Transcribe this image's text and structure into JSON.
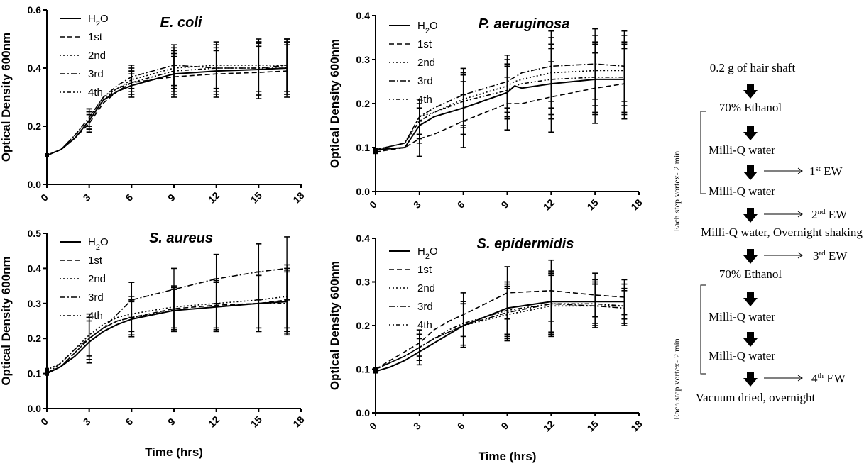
{
  "chart_data": [
    {
      "type": "line",
      "title": "E. coli",
      "xlabel": "",
      "ylabel": "Optical Density 600nm",
      "xlim": [
        0,
        18
      ],
      "ylim": [
        0,
        0.6
      ],
      "xticks": [
        0,
        3,
        6,
        9,
        12,
        15,
        18
      ],
      "yticks": [
        "0.0",
        "0.2",
        "0.4",
        "0.6"
      ],
      "x": [
        0,
        1,
        2,
        3,
        4,
        5,
        6,
        9,
        12,
        15,
        17
      ],
      "series": [
        {
          "name": "H2O",
          "values": [
            0.1,
            0.12,
            0.16,
            0.22,
            0.29,
            0.32,
            0.34,
            0.38,
            0.39,
            0.395,
            0.4
          ]
        },
        {
          "name": "1st",
          "values": [
            0.1,
            0.12,
            0.16,
            0.21,
            0.28,
            0.32,
            0.35,
            0.37,
            0.38,
            0.385,
            0.39
          ]
        },
        {
          "name": "2nd",
          "values": [
            0.1,
            0.12,
            0.17,
            0.23,
            0.3,
            0.33,
            0.36,
            0.4,
            0.41,
            0.41,
            0.41
          ]
        },
        {
          "name": "3rd",
          "values": [
            0.1,
            0.12,
            0.17,
            0.23,
            0.3,
            0.34,
            0.37,
            0.41,
            0.4,
            0.4,
            0.41
          ]
        },
        {
          "name": "4th",
          "values": [
            0.1,
            0.12,
            0.16,
            0.22,
            0.29,
            0.33,
            0.35,
            0.39,
            0.4,
            0.4,
            0.4
          ]
        }
      ],
      "error": [
        0.0,
        0.0,
        0.0,
        0.03,
        0.0,
        0.0,
        0.04,
        0.07,
        0.08,
        0.09,
        0.09
      ]
    },
    {
      "type": "line",
      "title": "P. aeruginosa",
      "xlabel": "",
      "ylabel": "Optical Density 600nm",
      "xlim": [
        0,
        18
      ],
      "ylim": [
        0,
        0.4
      ],
      "xticks": [
        0,
        3,
        6,
        9,
        12,
        15,
        18
      ],
      "yticks": [
        "0.0",
        "0.1",
        "0.2",
        "0.3",
        "0.4"
      ],
      "x": [
        0,
        2,
        3,
        4,
        6,
        9,
        9.5,
        10,
        12,
        15,
        17
      ],
      "series": [
        {
          "name": "H2O",
          "values": [
            0.095,
            0.1,
            0.15,
            0.17,
            0.19,
            0.225,
            0.24,
            0.235,
            0.245,
            0.255,
            0.255
          ]
        },
        {
          "name": "1st",
          "values": [
            0.09,
            0.1,
            0.12,
            0.13,
            0.16,
            0.2,
            0.2,
            0.2,
            0.215,
            0.235,
            0.245
          ]
        },
        {
          "name": "2nd",
          "values": [
            0.095,
            0.11,
            0.17,
            0.18,
            0.21,
            0.24,
            0.25,
            0.255,
            0.27,
            0.275,
            0.275
          ]
        },
        {
          "name": "3rd",
          "values": [
            0.095,
            0.11,
            0.17,
            0.19,
            0.22,
            0.25,
            0.26,
            0.27,
            0.285,
            0.29,
            0.285
          ]
        },
        {
          "name": "4th",
          "values": [
            0.095,
            0.11,
            0.16,
            0.18,
            0.205,
            0.23,
            0.24,
            0.245,
            0.255,
            0.26,
            0.26
          ]
        }
      ],
      "error": [
        0.0,
        0.0,
        0.04,
        0.0,
        0.06,
        0.06,
        0.0,
        0.0,
        0.08,
        0.08,
        0.08
      ]
    },
    {
      "type": "line",
      "title": "S. aureus",
      "xlabel": "Time (hrs)",
      "ylabel": "Optical Density 600nm",
      "xlim": [
        0,
        18
      ],
      "ylim": [
        0,
        0.5
      ],
      "xticks": [
        0,
        3,
        6,
        9,
        12,
        15,
        18
      ],
      "yticks": [
        "0.0",
        "0.1",
        "0.2",
        "0.3",
        "0.4",
        "0.5"
      ],
      "x": [
        0,
        1,
        2,
        3,
        4,
        5,
        6,
        9,
        12,
        15,
        17
      ],
      "series": [
        {
          "name": "H2O",
          "values": [
            0.1,
            0.12,
            0.15,
            0.19,
            0.22,
            0.24,
            0.255,
            0.28,
            0.29,
            0.3,
            0.305
          ]
        },
        {
          "name": "1st",
          "values": [
            0.1,
            0.12,
            0.16,
            0.2,
            0.23,
            0.25,
            0.26,
            0.285,
            0.295,
            0.3,
            0.31
          ]
        },
        {
          "name": "2nd",
          "values": [
            0.11,
            0.13,
            0.17,
            0.21,
            0.24,
            0.26,
            0.27,
            0.29,
            0.3,
            0.31,
            0.32
          ]
        },
        {
          "name": "3rd",
          "values": [
            0.1,
            0.13,
            0.17,
            0.2,
            0.23,
            0.27,
            0.31,
            0.34,
            0.37,
            0.39,
            0.4
          ]
        },
        {
          "name": "4th",
          "values": [
            0.1,
            0.12,
            0.16,
            0.2,
            0.23,
            0.25,
            0.26,
            0.28,
            0.29,
            0.3,
            0.3
          ]
        }
      ],
      "error": [
        0.0,
        0.0,
        0.0,
        0.06,
        0.0,
        0.0,
        0.05,
        0.06,
        0.07,
        0.08,
        0.09
      ]
    },
    {
      "type": "line",
      "title": "S. epidermidis",
      "xlabel": "Time (hrs)",
      "ylabel": "Optical Density 600nm",
      "xlim": [
        0,
        18
      ],
      "ylim": [
        0,
        0.4
      ],
      "xticks": [
        0,
        3,
        6,
        9,
        12,
        15,
        18
      ],
      "yticks": [
        "0.0",
        "0.1",
        "0.2",
        "0.3",
        "0.4"
      ],
      "x": [
        0,
        1,
        2,
        3,
        4,
        5,
        6,
        9,
        12,
        15,
        17
      ],
      "series": [
        {
          "name": "H2O",
          "values": [
            0.095,
            0.105,
            0.12,
            0.14,
            0.16,
            0.18,
            0.2,
            0.24,
            0.255,
            0.255,
            0.255
          ]
        },
        {
          "name": "1st",
          "values": [
            0.1,
            0.12,
            0.14,
            0.16,
            0.19,
            0.21,
            0.225,
            0.275,
            0.28,
            0.27,
            0.265
          ]
        },
        {
          "name": "2nd",
          "values": [
            0.1,
            0.115,
            0.13,
            0.15,
            0.17,
            0.185,
            0.2,
            0.225,
            0.245,
            0.245,
            0.245
          ]
        },
        {
          "name": "3rd",
          "values": [
            0.1,
            0.115,
            0.13,
            0.15,
            0.17,
            0.185,
            0.2,
            0.23,
            0.25,
            0.245,
            0.24
          ]
        },
        {
          "name": "4th",
          "values": [
            0.1,
            0.115,
            0.13,
            0.15,
            0.17,
            0.19,
            0.205,
            0.235,
            0.25,
            0.25,
            0.245
          ]
        }
      ],
      "error": [
        0.0,
        0.0,
        0.0,
        0.03,
        0.0,
        0.0,
        0.05,
        0.06,
        0.07,
        0.05,
        0.04
      ]
    }
  ],
  "legend_labels": [
    "H2O",
    "1st",
    "2nd",
    "3rd",
    "4th"
  ],
  "flowchart": {
    "steps": [
      "0.2 g of hair shaft",
      "70% Ethanol",
      "Milli-Q water",
      "Milli-Q water",
      "Milli-Q water, Overnight shaking",
      "70% Ethanol",
      "Milli-Q water",
      "Milli-Q water",
      "Vacuum dried, overnight"
    ],
    "outputs": [
      {
        "num": "1",
        "sup": "st",
        "label": "EW"
      },
      {
        "num": "2",
        "sup": "nd",
        "label": "EW"
      },
      {
        "num": "3",
        "sup": "rd",
        "label": "EW"
      },
      {
        "num": "4",
        "sup": "th",
        "label": "EW"
      }
    ],
    "side_labels": [
      "Each step vortex- 2 min",
      "Each step vortex- 2 min"
    ]
  }
}
